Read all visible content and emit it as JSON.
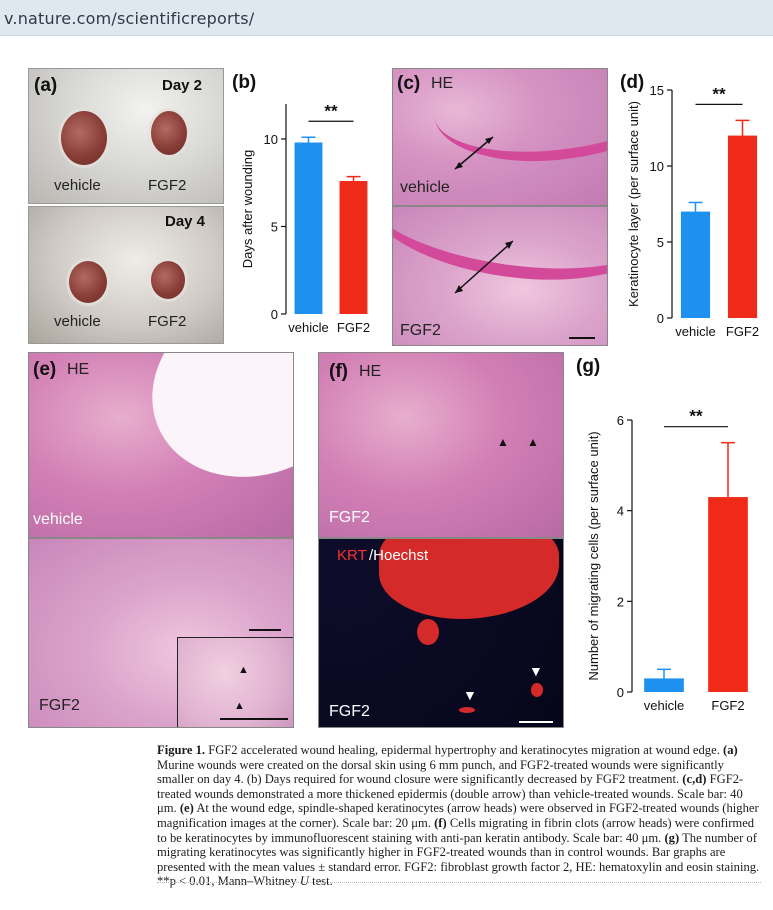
{
  "browser": {
    "url": "v.nature.com/scientificreports/"
  },
  "panels": {
    "a": {
      "label": "(a)",
      "day_top": "Day 2",
      "day_bottom": "Day 4",
      "vehicle": "vehicle",
      "fgf2": "FGF2"
    },
    "c": {
      "label": "(c)",
      "stain": "HE",
      "vehicle": "vehicle",
      "fgf2": "FGF2"
    },
    "e": {
      "label": "(e)",
      "stain": "HE",
      "vehicle": "vehicle",
      "fgf2": "FGF2"
    },
    "f": {
      "label": "(f)",
      "stain": "HE",
      "fgf2_top": "FGF2",
      "krt": "KRT",
      "hoechst": "/Hoechst",
      "fgf2_bottom": "FGF2"
    }
  },
  "chart_data": [
    {
      "panel": "(b)",
      "type": "bar",
      "categories": [
        "vehicle",
        "FGF2"
      ],
      "values": [
        9.8,
        7.6
      ],
      "errors": [
        0.3,
        0.25
      ],
      "colors": [
        "#1e90f0",
        "#f02a18"
      ],
      "ylabel": "Days after wounding",
      "ylim": [
        0,
        12
      ],
      "yticks": [
        "0",
        "5",
        "10"
      ],
      "significance": "**"
    },
    {
      "panel": "(d)",
      "type": "bar",
      "categories": [
        "vehicle",
        "FGF2"
      ],
      "values": [
        7,
        12
      ],
      "errors": [
        0.6,
        1.0
      ],
      "colors": [
        "#1e90f0",
        "#f02a18"
      ],
      "ylabel": "Keratinocyte layer (per surface unit)",
      "ylim": [
        0,
        15
      ],
      "yticks": [
        "0",
        "5",
        "10",
        "15"
      ],
      "significance": "**"
    },
    {
      "panel": "(g)",
      "type": "bar",
      "categories": [
        "vehicle",
        "FGF2"
      ],
      "values": [
        0.3,
        4.3
      ],
      "errors": [
        0.2,
        1.2
      ],
      "colors": [
        "#1e90f0",
        "#f02a18"
      ],
      "ylabel": "Number of migrating cells (per surface unit)",
      "ylim": [
        0,
        6
      ],
      "yticks": [
        "0",
        "2",
        "4",
        "6"
      ],
      "significance": "**"
    }
  ],
  "caption": {
    "fig": "Figure 1.",
    "t1": "FGF2 accelerated wound healing, epidermal hypertrophy and keratinocytes migration at wound edge.",
    "t2": "(a)",
    "t3": "Murine wounds were created on the dorsal skin using 6 mm punch, and FGF2-treated wounds were significantly smaller on day 4. (b) Days required for wound closure were significantly decreased by FGF2 treatment.",
    "t4": "(c,d)",
    "t5": "FGF2-treated wounds demonstrated a more thickened epidermis (double arrow) than vehicle-treated wounds. Scale bar: 40 μm.",
    "t6": "(e)",
    "t7": "At the wound edge, spindle-shaped keratinocytes (arrow heads) were observed in FGF2-treated wounds (higher magnification images at the corner). Scale bar: 20 μm.",
    "t8": "(f)",
    "t9": "Cells migrating in fibrin clots (arrow heads) were confirmed to be keratinocytes by immunofluorescent staining with anti-pan keratin antibody. Scale bar: 40 μm.",
    "t10": "(g)",
    "t11": "The number of migrating keratinocytes was significantly higher in FGF2-treated wounds than in control wounds. Bar graphs are presented with the mean values ± standard error. FGF2: fibroblast growth factor 2, HE: hematoxylin and eosin staining. **p < 0.01, Mann–Whitney",
    "t12": "U",
    "t13": "test."
  }
}
